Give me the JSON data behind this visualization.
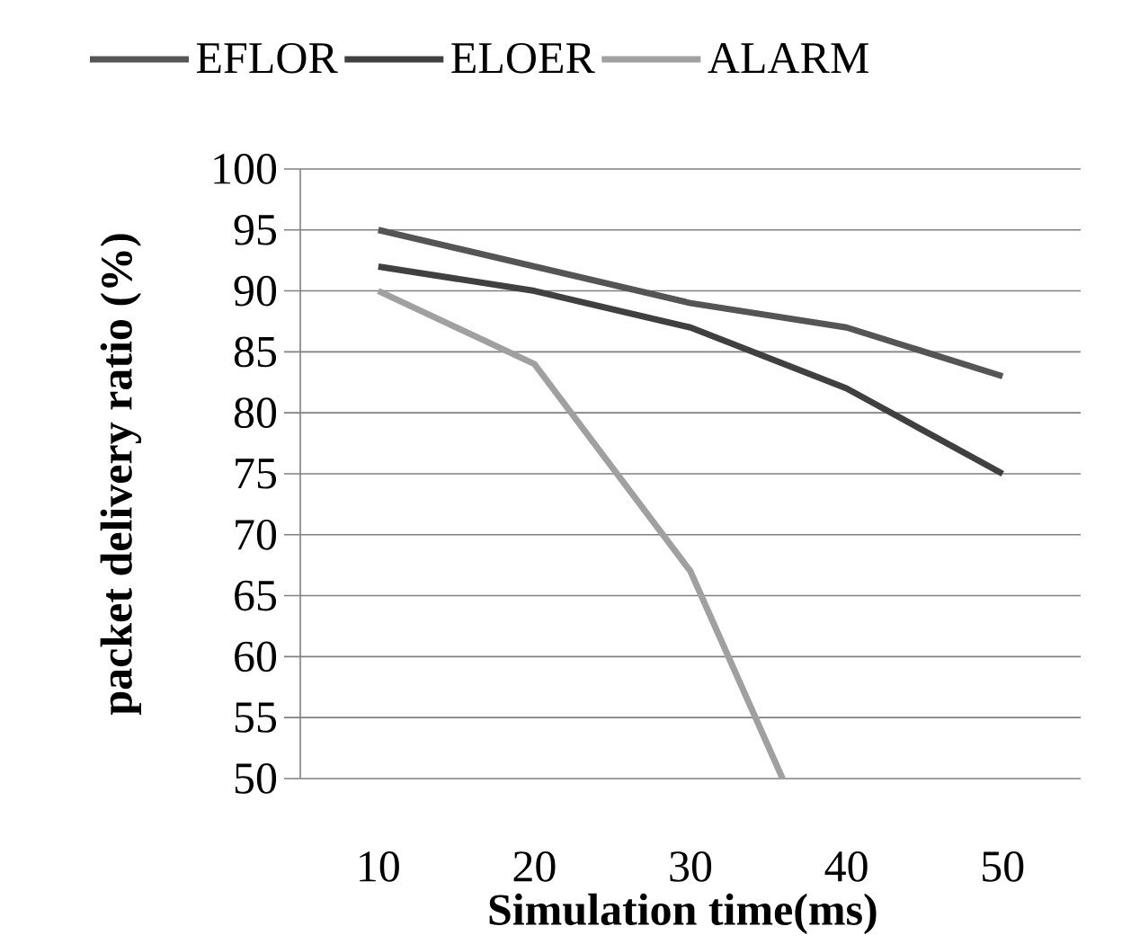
{
  "chart_data": {
    "type": "line",
    "xlabel": "Simulation time(ms)",
    "ylabel": "packet delivery ratio (%)",
    "x": [
      10,
      20,
      30,
      40,
      50
    ],
    "xlim": [
      5,
      55
    ],
    "xticks": [
      10,
      20,
      30,
      40,
      50
    ],
    "ylim": [
      50,
      100
    ],
    "yticks": [
      50,
      55,
      60,
      65,
      70,
      75,
      80,
      85,
      90,
      95,
      100
    ],
    "grid": "y",
    "legend": "top",
    "marker": "none",
    "line_style": "solid",
    "series": [
      {
        "name": "EFLOR",
        "color": "#555555",
        "values": [
          95,
          92,
          89,
          87,
          83
        ]
      },
      {
        "name": "ELOER",
        "color": "#404040",
        "values": [
          92,
          90,
          87,
          82,
          75
        ]
      },
      {
        "name": "ALARM",
        "color": "#a0a0a0",
        "x": [
          10,
          20,
          30,
          35.9
        ],
        "values": [
          90,
          84,
          67,
          50
        ]
      }
    ]
  }
}
